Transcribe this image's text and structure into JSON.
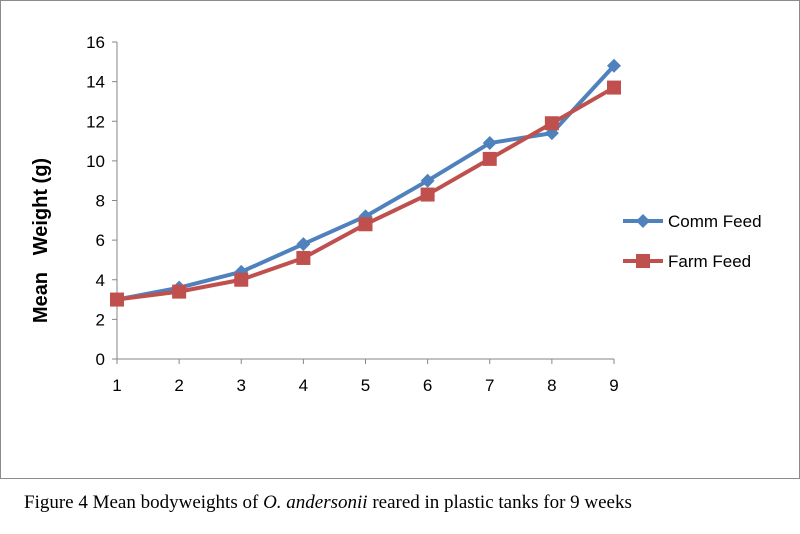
{
  "chart_data": {
    "type": "line",
    "title": "",
    "xlabel": "",
    "ylabel": "Mean   Weight (g)",
    "x": [
      1,
      2,
      3,
      4,
      5,
      6,
      7,
      8,
      9
    ],
    "x_tick_labels": [
      "1",
      "2",
      "3",
      "4",
      "5",
      "6",
      "7",
      "8",
      "9"
    ],
    "ylim": [
      0,
      16
    ],
    "y_ticks": [
      0,
      2,
      4,
      6,
      8,
      10,
      12,
      14,
      16
    ],
    "y_tick_labels": [
      "0",
      "2",
      "4",
      "6",
      "8",
      "10",
      "12",
      "14",
      "16"
    ],
    "grid": false,
    "legend_position": "right",
    "series": [
      {
        "name": "Comm Feed",
        "marker": "diamond",
        "color": "#4F81BD",
        "values": [
          3.0,
          3.6,
          4.4,
          5.8,
          7.2,
          9.0,
          10.9,
          11.4,
          14.8
        ]
      },
      {
        "name": "Farm Feed",
        "marker": "square",
        "color": "#C0504D",
        "values": [
          3.0,
          3.4,
          4.0,
          5.1,
          6.8,
          8.3,
          10.1,
          11.9,
          13.7
        ]
      }
    ]
  },
  "caption": {
    "prefix": "Figure 4 Mean bodyweights of ",
    "species": "O. andersonii",
    "suffix": " reared in plastic tanks for 9 weeks"
  }
}
